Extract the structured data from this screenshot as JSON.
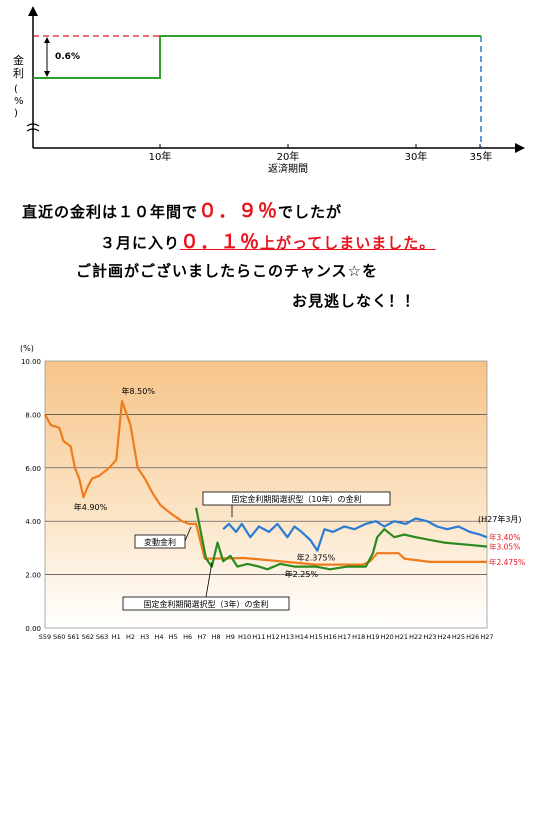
{
  "top_chart": {
    "type": "line",
    "ylabel": "金利（％）",
    "xlabel": "返済期間",
    "x_ticks": [
      "10年",
      "20年",
      "30年",
      "35年"
    ],
    "step_label": "0.6%",
    "colors": {
      "line": "#2ca02c",
      "dash_red": "#e8141e",
      "dash_blue": "#1f6fd0"
    }
  },
  "message": {
    "line1_a": "直近の金利は１０年間で",
    "line1_red": "０．９％",
    "line1_b": "でしたが",
    "line2_a": "３月に入り",
    "line2_red": "０．１％",
    "line2_b": "上がってしまいました。",
    "line3": "ご計画がございましたらこのチャンス☆を",
    "line4": "お見逃しなく！！"
  },
  "chart_data": {
    "type": "line",
    "y_unit": "(%)",
    "ylim": [
      0,
      10
    ],
    "y_ticks": [
      "0.00",
      "2.00",
      "4.00",
      "6.00",
      "8.00",
      "10.00"
    ],
    "x_ticks": [
      "S59",
      "S60",
      "S61",
      "S62",
      "S63",
      "H1",
      "H2",
      "H3",
      "H4",
      "H5",
      "H6",
      "H7",
      "H8",
      "H9",
      "H10",
      "H11",
      "H12",
      "H13",
      "H14",
      "H15",
      "H16",
      "H17",
      "H18",
      "H19",
      "H20",
      "H21",
      "H22",
      "H23",
      "H24",
      "H25",
      "H26",
      "H27"
    ],
    "grid": true,
    "date_label": "(H27年3月)",
    "annotations": [
      {
        "text": "年8.50%",
        "x": "H2",
        "y": 8.5
      },
      {
        "text": "年4.90%",
        "x": "S62",
        "y": 4.9
      },
      {
        "text": "年2.375%",
        "x": "H15",
        "y": 2.375
      },
      {
        "text": "年2.25%",
        "x": "H13",
        "y": 2.25
      }
    ],
    "series": [
      {
        "name": "変動金利",
        "color": "#f07b1a",
        "end_label": "年2.475%",
        "points": [
          [
            0,
            8.0
          ],
          [
            0.4,
            7.6
          ],
          [
            1.0,
            7.5
          ],
          [
            1.3,
            7.0
          ],
          [
            1.8,
            6.8
          ],
          [
            2.1,
            6.0
          ],
          [
            2.4,
            5.6
          ],
          [
            2.7,
            4.9
          ],
          [
            3.0,
            5.3
          ],
          [
            3.3,
            5.6
          ],
          [
            3.8,
            5.7
          ],
          [
            4.5,
            6.0
          ],
          [
            5.0,
            6.3
          ],
          [
            5.4,
            8.5
          ],
          [
            6.0,
            7.6
          ],
          [
            6.5,
            6.0
          ],
          [
            7.0,
            5.6
          ],
          [
            7.6,
            5.0
          ],
          [
            8.1,
            4.6
          ],
          [
            8.8,
            4.3
          ],
          [
            9.6,
            4.0
          ],
          [
            10.1,
            3.9
          ],
          [
            10.6,
            3.9
          ],
          [
            11.2,
            2.6
          ],
          [
            11.6,
            2.6
          ],
          [
            14.0,
            2.62
          ],
          [
            19.0,
            2.375
          ],
          [
            22.3,
            2.375
          ],
          [
            22.8,
            2.5
          ],
          [
            23.3,
            2.8
          ],
          [
            24.8,
            2.8
          ],
          [
            25.2,
            2.6
          ],
          [
            27.0,
            2.475
          ],
          [
            31.0,
            2.475
          ]
        ]
      },
      {
        "name": "固定金利期間選択型（3年）の金利",
        "color": "#2b8a1e",
        "end_label": "年3.05%",
        "points": [
          [
            10.6,
            4.5
          ],
          [
            11.0,
            3.4
          ],
          [
            11.3,
            2.6
          ],
          [
            11.7,
            2.3
          ],
          [
            12.1,
            3.2
          ],
          [
            12.5,
            2.5
          ],
          [
            13.0,
            2.7
          ],
          [
            13.5,
            2.3
          ],
          [
            14.2,
            2.4
          ],
          [
            15.0,
            2.3
          ],
          [
            15.6,
            2.2
          ],
          [
            16.5,
            2.4
          ],
          [
            17.5,
            2.3
          ],
          [
            19.0,
            2.3
          ],
          [
            20.0,
            2.2
          ],
          [
            21.2,
            2.3
          ],
          [
            22.5,
            2.3
          ],
          [
            23.0,
            2.8
          ],
          [
            23.3,
            3.4
          ],
          [
            23.8,
            3.7
          ],
          [
            24.5,
            3.4
          ],
          [
            25.2,
            3.5
          ],
          [
            26.0,
            3.4
          ],
          [
            27.0,
            3.3
          ],
          [
            28.0,
            3.2
          ],
          [
            30.0,
            3.1
          ],
          [
            31.0,
            3.05
          ]
        ]
      },
      {
        "name": "固定金利期間選択型（10年）の金利",
        "color": "#2a7bd4",
        "end_label": "年3.40%",
        "points": [
          [
            12.5,
            3.7
          ],
          [
            12.9,
            3.9
          ],
          [
            13.4,
            3.6
          ],
          [
            13.8,
            3.9
          ],
          [
            14.4,
            3.4
          ],
          [
            15.0,
            3.8
          ],
          [
            15.7,
            3.6
          ],
          [
            16.3,
            3.9
          ],
          [
            17.0,
            3.4
          ],
          [
            17.5,
            3.8
          ],
          [
            18.0,
            3.6
          ],
          [
            18.6,
            3.3
          ],
          [
            19.1,
            2.9
          ],
          [
            19.6,
            3.7
          ],
          [
            20.2,
            3.6
          ],
          [
            21.0,
            3.8
          ],
          [
            21.7,
            3.7
          ],
          [
            22.5,
            3.9
          ],
          [
            23.2,
            4.0
          ],
          [
            23.8,
            3.8
          ],
          [
            24.5,
            4.0
          ],
          [
            25.3,
            3.9
          ],
          [
            26.0,
            4.1
          ],
          [
            26.8,
            4.0
          ],
          [
            27.5,
            3.8
          ],
          [
            28.2,
            3.7
          ],
          [
            29.0,
            3.8
          ],
          [
            29.8,
            3.6
          ],
          [
            30.5,
            3.5
          ],
          [
            31.0,
            3.4
          ]
        ]
      }
    ]
  }
}
